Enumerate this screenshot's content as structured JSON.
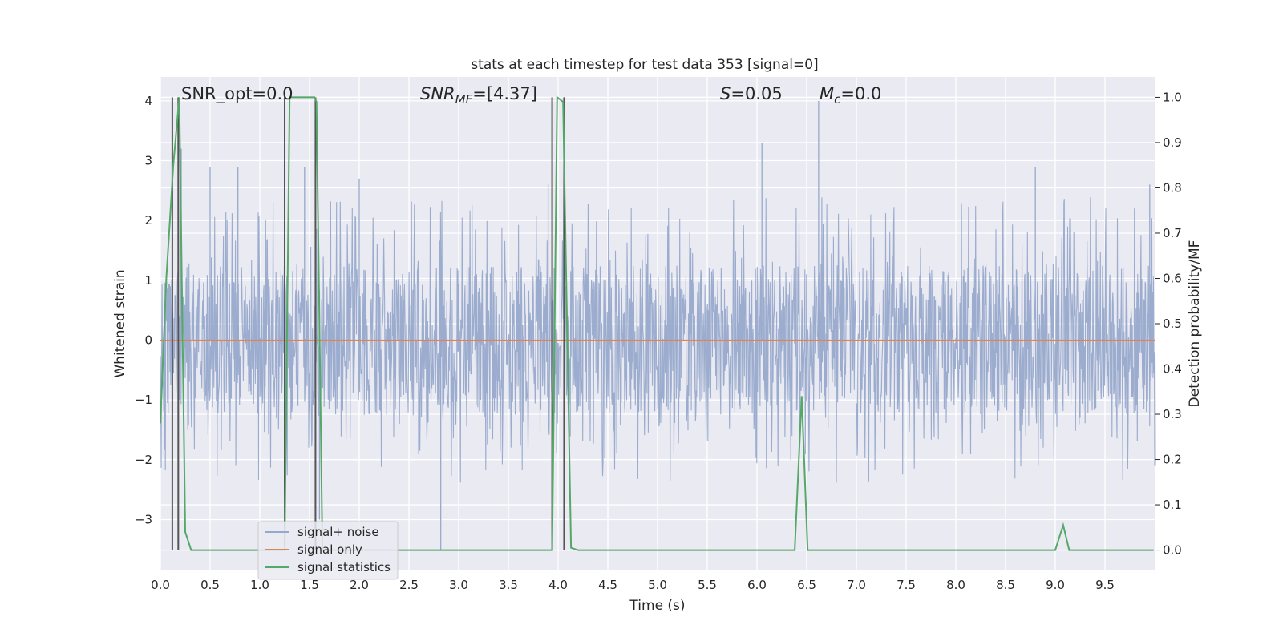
{
  "chart_data": {
    "type": "line",
    "title": "stats at each timestep for test data 353 [signal=0]",
    "xlabel": "Time (s)",
    "ylabel": "Whitened strain",
    "y2label": "Detection probability/MF",
    "xlim": [
      0,
      10
    ],
    "ylim": [
      -3.85,
      4.4
    ],
    "y2lim": [
      -0.045,
      1.045
    ],
    "xticks": [
      "0.0",
      "0.5",
      "1.0",
      "1.5",
      "2.0",
      "2.5",
      "3.0",
      "3.5",
      "4.0",
      "4.5",
      "5.0",
      "5.5",
      "6.0",
      "6.5",
      "7.0",
      "7.5",
      "8.0",
      "8.5",
      "9.0",
      "9.5"
    ],
    "yticks": [
      "4",
      "3",
      "2",
      "1",
      "0",
      "−1",
      "−2",
      "−3"
    ],
    "y2ticks": [
      "1.0",
      "0.9",
      "0.8",
      "0.7",
      "0.6",
      "0.5",
      "0.4",
      "0.3",
      "0.2",
      "0.1",
      "0.0"
    ],
    "grid": true,
    "legend_position": "lower-left",
    "annotations": {
      "snr_opt": "SNR_opt=0.0",
      "snr_mf_main": "SNR",
      "snr_mf_sub": "MF",
      "snr_mf_value": "=[4.37]",
      "s_main": "S",
      "s_value": "=0.05",
      "mc_main": "M",
      "mc_sub": "c",
      "mc_value": "=0.0"
    },
    "series": [
      {
        "name": "signal+ noise",
        "color": "#97a9cb",
        "description_of_values": "noise-like strain, approx. ±1.2 envelope with spikes to about ±3",
        "notable_peaks_x": [
          0.12,
          0.21,
          0.5,
          0.78,
          1.45,
          1.6,
          2.0,
          2.82,
          3.9,
          6.05,
          6.62,
          8.8,
          9.95
        ],
        "notable_peaks_y": [
          -2.4,
          3.2,
          2.9,
          2.9,
          2.9,
          -3.0,
          2.7,
          -3.5,
          2.6,
          3.3,
          4.0,
          2.9,
          2.6
        ]
      },
      {
        "name": "signal only",
        "color": "#dd8452",
        "x": [
          0,
          10
        ],
        "y": [
          0,
          0
        ]
      },
      {
        "name": "signal statistics",
        "color": "#55a868",
        "axis": "right",
        "x": [
          0.0,
          0.06,
          0.13,
          0.19,
          0.25,
          0.31,
          0.5,
          1.0,
          1.25,
          1.3,
          1.55,
          1.57,
          1.63,
          2.0,
          3.5,
          3.94,
          3.99,
          4.05,
          4.13,
          4.2,
          5.0,
          6.0,
          6.38,
          6.45,
          6.51,
          7.0,
          8.0,
          9.0,
          9.08,
          9.14,
          9.5,
          9.99
        ],
        "y": [
          0.28,
          0.6,
          0.85,
          1.0,
          0.04,
          0.0,
          0.0,
          0.0,
          0.0,
          1.0,
          1.0,
          0.99,
          0.0,
          0.0,
          0.0,
          0.0,
          1.0,
          0.99,
          0.005,
          0.0,
          0.0,
          0.0,
          0.0,
          0.34,
          0.0,
          0.0,
          0.0,
          0.0,
          0.055,
          0.0,
          0.0,
          0.0
        ]
      },
      {
        "name": "",
        "color": "#555555",
        "kind": "vertical-markers",
        "x": [
          0.12,
          0.18,
          1.25,
          1.56,
          3.94,
          4.06
        ]
      }
    ]
  }
}
